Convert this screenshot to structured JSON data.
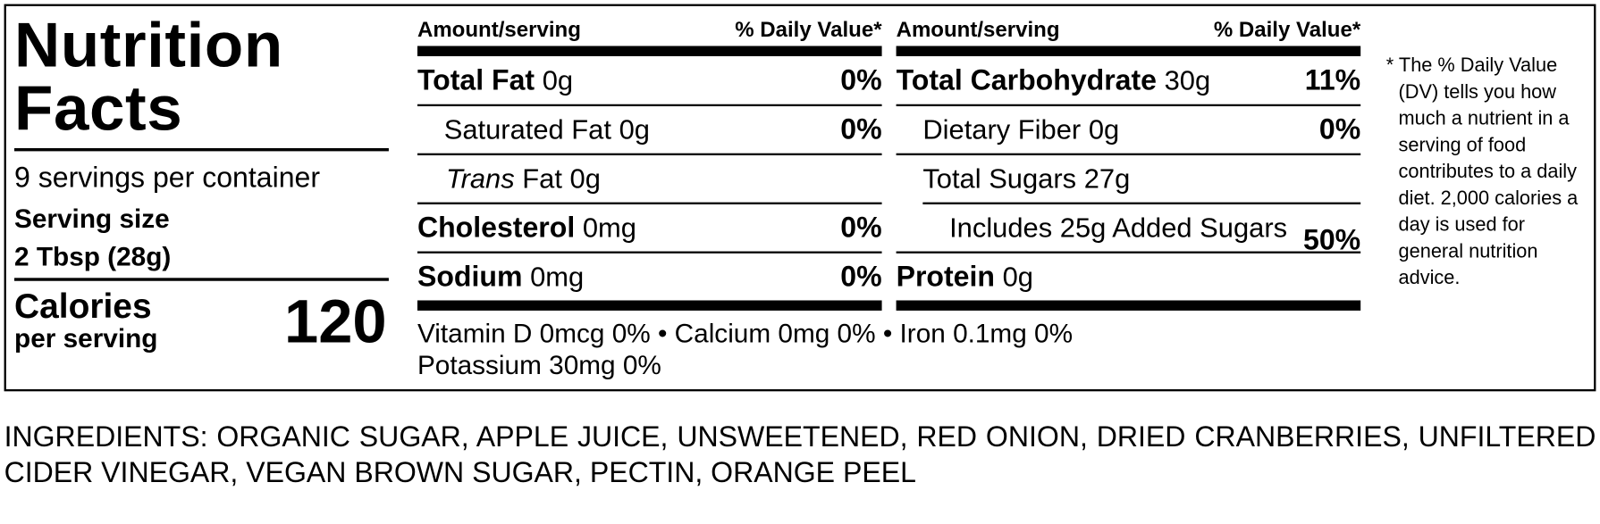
{
  "title": "Nutrition Facts",
  "servings": "9 servings per container",
  "serving_size_label": "Serving size",
  "serving_size": "2 Tbsp (28g)",
  "calories_label": "Calories",
  "calories_sub": "per serving",
  "calories": "120",
  "left": {
    "header_amount": "Amount/serving",
    "header_dv": "% Daily Value*",
    "rows": [
      {
        "name": "Total Fat",
        "amount": "0g",
        "dv": "0%"
      },
      {
        "name": "Saturated Fat",
        "amount": "0g",
        "dv": "0%"
      },
      {
        "name_prefix": "Trans",
        "name": "Fat",
        "amount": "0g"
      },
      {
        "name": "Cholesterol",
        "amount": "0mg",
        "dv": "0%"
      },
      {
        "name": "Sodium",
        "amount": "0mg",
        "dv": "0%"
      }
    ]
  },
  "right": {
    "header_amount": "Amount/serving",
    "header_dv": "% Daily Value*",
    "rows": [
      {
        "name": "Total Carbohydrate",
        "amount": "30g",
        "dv": "11%"
      },
      {
        "name": "Dietary Fiber",
        "amount": "0g",
        "dv": "0%"
      },
      {
        "name": "Total Sugars",
        "amount": "27g"
      },
      {
        "name": "Includes 25g Added Sugars",
        "dv": "50%"
      },
      {
        "name": "Protein",
        "amount": "0g"
      }
    ]
  },
  "vitamins": [
    "Vitamin D 0mcg 0% • Calcium 0mg 0% • Iron 0.1mg 0%",
    "Potassium 30mg 0%"
  ],
  "footnote": "* The % Daily Value (DV) tells you how much a nutrient in a serving of food contributes to a daily diet. 2,000 calories a day is used for general nutrition advice.",
  "ingredients": "INGREDIENTS: ORGANIC SUGAR, APPLE JUICE, UNSWEETENED, RED ONION, DRIED CRANBERRIES, UNFILTERED CIDER VINEGAR, VEGAN BROWN SUGAR, PECTIN, ORANGE PEEL"
}
